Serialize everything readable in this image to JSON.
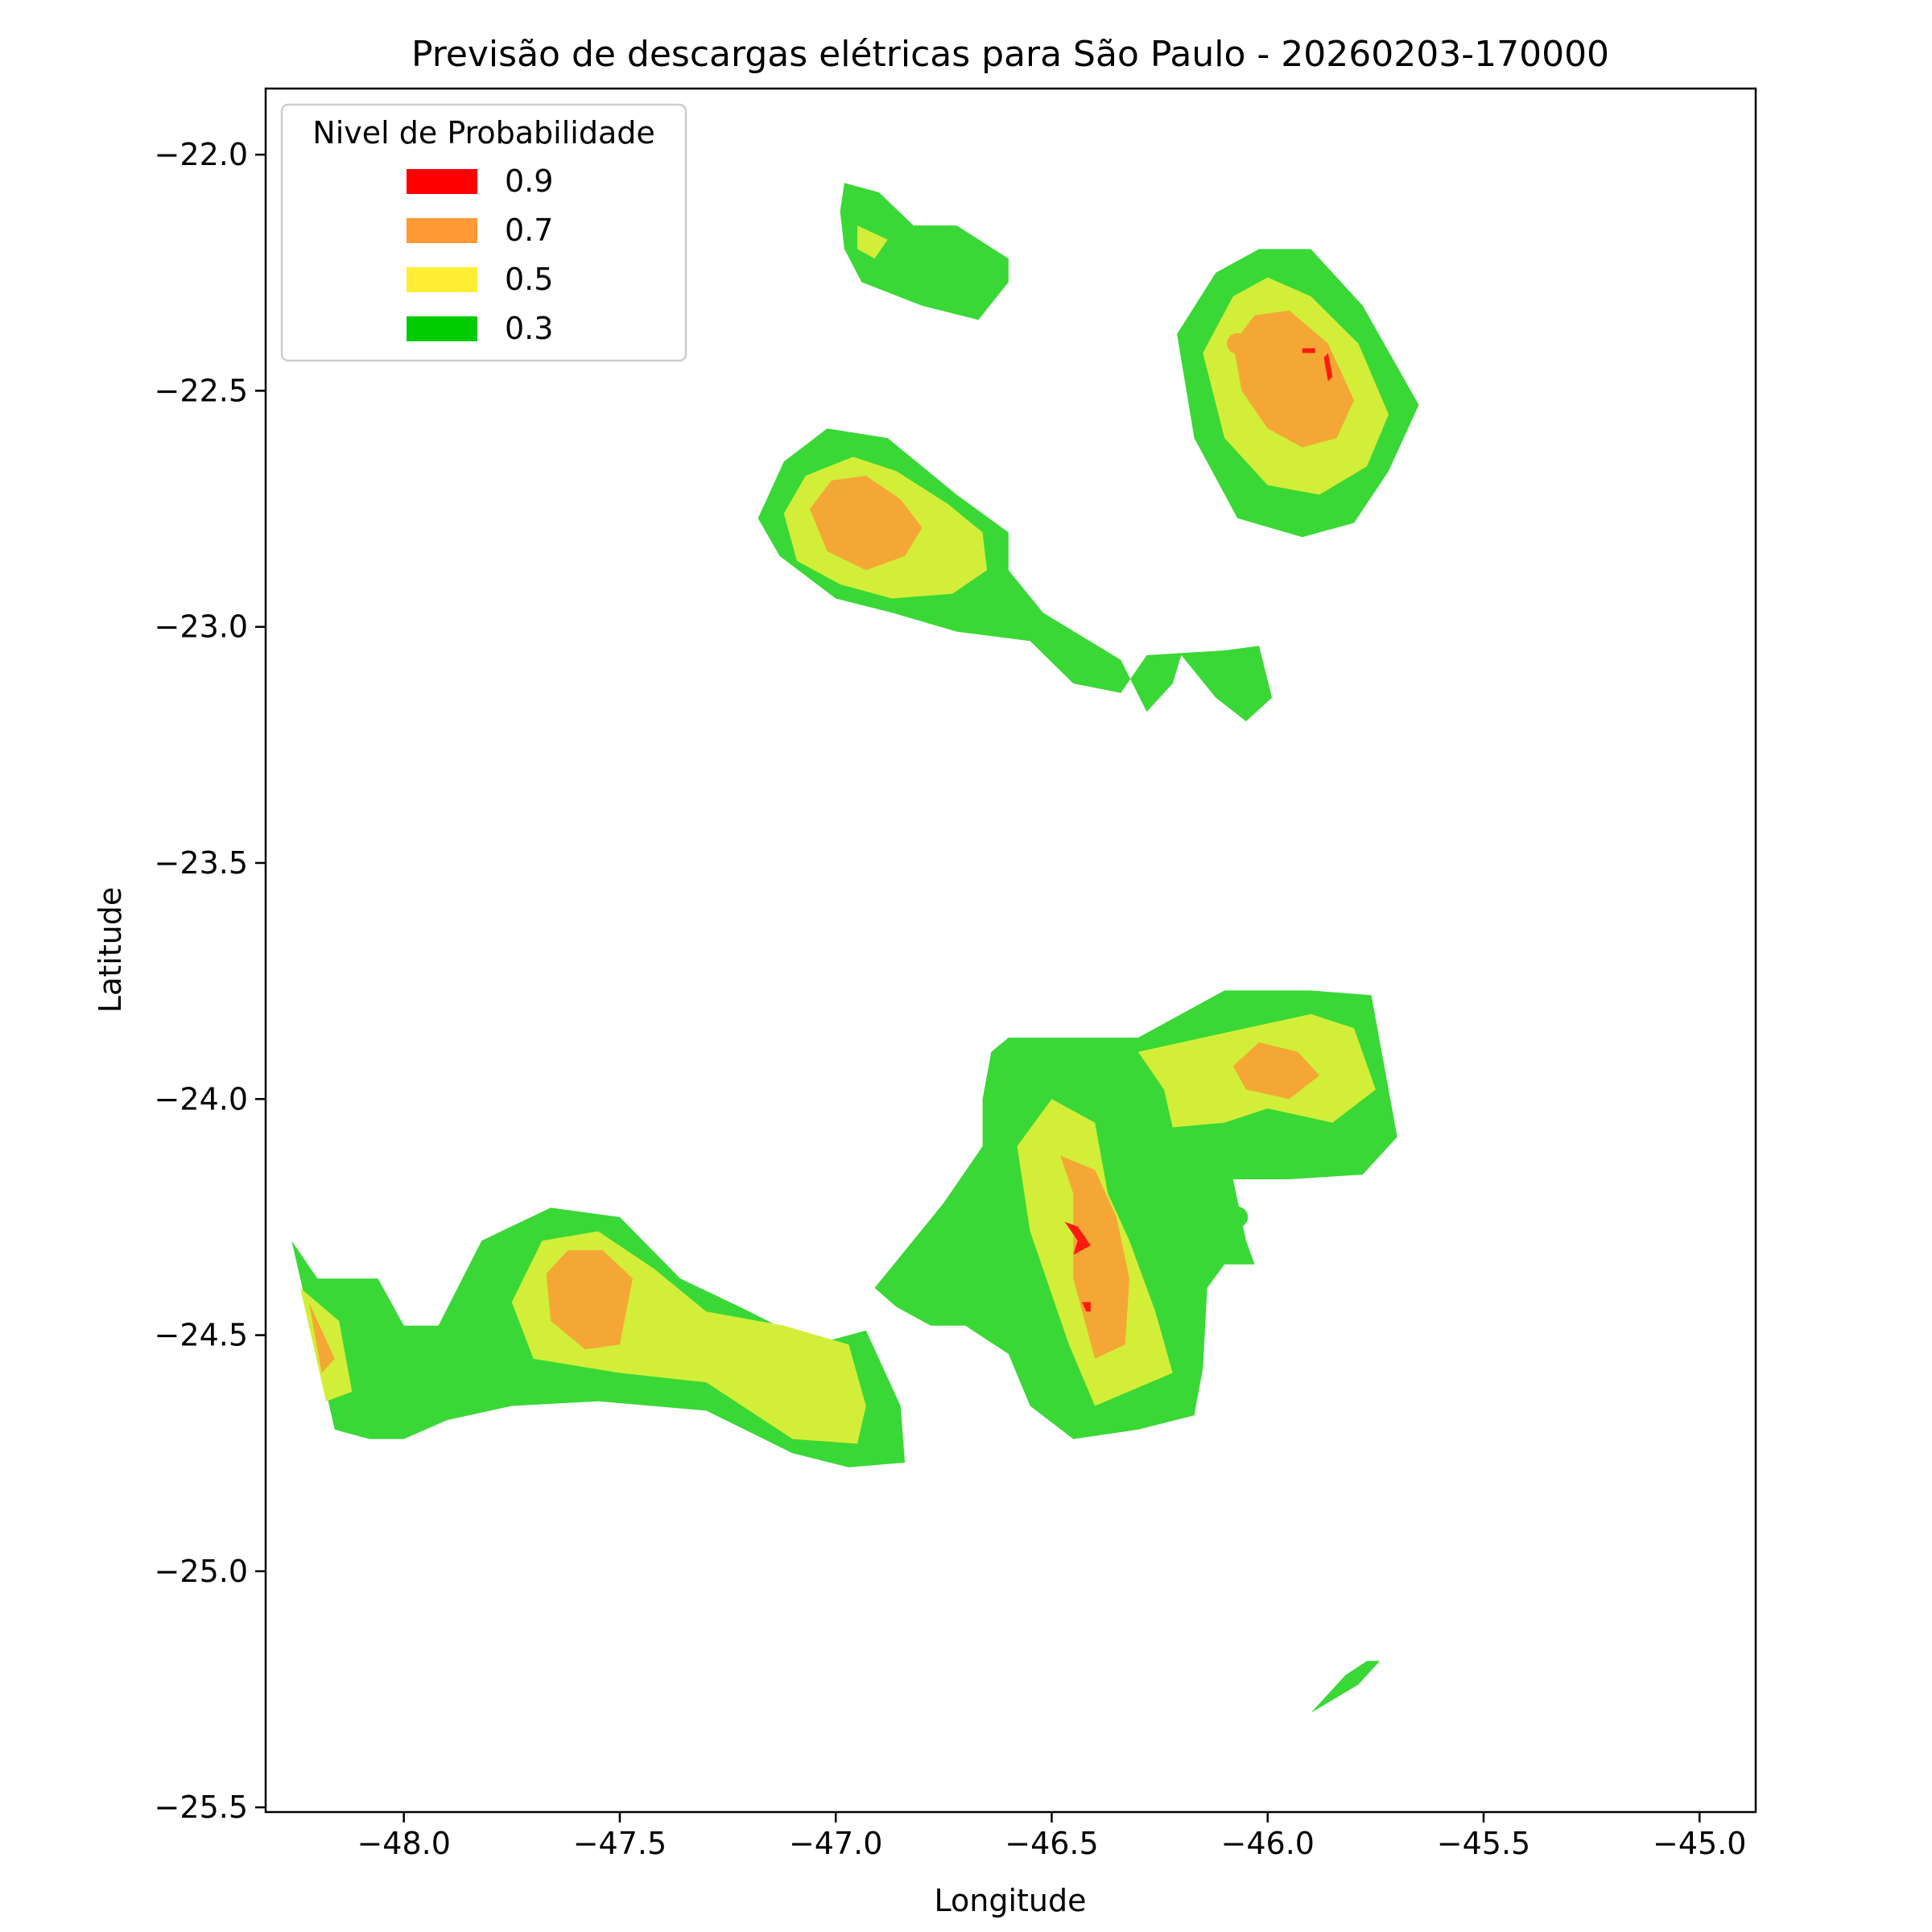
{
  "chart_data": {
    "type": "heatmap",
    "title": "Previsão de descargas elétricas para São Paulo - 20260203-170000",
    "xlabel": "Longitude",
    "ylabel": "Latitude",
    "xlim": [
      -48.32,
      -44.87
    ],
    "ylim": [
      -25.51,
      -21.86
    ],
    "xticks": [
      -48.0,
      -47.5,
      -47.0,
      -46.5,
      -46.0,
      -45.5,
      -45.0
    ],
    "yticks": [
      -22.0,
      -22.5,
      -23.0,
      -23.5,
      -24.0,
      -24.5,
      -25.0,
      -25.5
    ],
    "xtick_labels": [
      "−48.0",
      "−47.5",
      "−47.0",
      "−46.5",
      "−46.0",
      "−45.5",
      "−45.0"
    ],
    "ytick_labels": [
      "−22.0",
      "−22.5",
      "−23.0",
      "−23.5",
      "−24.0",
      "−24.5",
      "−25.0",
      "−25.5"
    ],
    "grid": false,
    "legend": {
      "title": "Nivel de Probabilidade",
      "placement": "upper-left",
      "entries": [
        {
          "label": "0.9",
          "color": "#ff0000"
        },
        {
          "label": "0.7",
          "color": "#ff9933"
        },
        {
          "label": "0.5",
          "color": "#ffee33"
        },
        {
          "label": "0.3",
          "color": "#00cc00"
        }
      ]
    },
    "fill_colors": {
      "0.3": "#3ad836",
      "0.5": "#d2ee39",
      "0.7": "#f5a735",
      "0.9": "#ff1a10"
    },
    "regions": [
      {
        "level": 0.3,
        "points": [
          [
            -46.98,
            -22.06
          ],
          [
            -46.9,
            -22.08
          ],
          [
            -46.82,
            -22.15
          ],
          [
            -46.72,
            -22.15
          ],
          [
            -46.6,
            -22.22
          ],
          [
            -46.6,
            -22.27
          ],
          [
            -46.67,
            -22.35
          ],
          [
            -46.8,
            -22.32
          ],
          [
            -46.94,
            -22.27
          ],
          [
            -46.98,
            -22.2
          ],
          [
            -46.99,
            -22.12
          ]
        ]
      },
      {
        "level": 0.5,
        "points": [
          [
            -46.95,
            -22.15
          ],
          [
            -46.88,
            -22.18
          ],
          [
            -46.91,
            -22.22
          ],
          [
            -46.95,
            -22.2
          ]
        ]
      },
      {
        "level": 0.3,
        "points": [
          [
            -47.18,
            -22.77
          ],
          [
            -47.12,
            -22.65
          ],
          [
            -47.02,
            -22.58
          ],
          [
            -46.88,
            -22.6
          ],
          [
            -46.72,
            -22.72
          ],
          [
            -46.6,
            -22.8
          ],
          [
            -46.6,
            -22.88
          ],
          [
            -46.52,
            -22.97
          ],
          [
            -46.34,
            -23.07
          ],
          [
            -46.28,
            -23.18
          ],
          [
            -46.22,
            -23.12
          ],
          [
            -46.2,
            -23.06
          ],
          [
            -46.12,
            -23.15
          ],
          [
            -46.05,
            -23.2
          ],
          [
            -45.99,
            -23.15
          ],
          [
            -46.02,
            -23.04
          ],
          [
            -46.1,
            -23.05
          ],
          [
            -46.28,
            -23.06
          ],
          [
            -46.34,
            -23.14
          ],
          [
            -46.45,
            -23.12
          ],
          [
            -46.55,
            -23.03
          ],
          [
            -46.72,
            -23.01
          ],
          [
            -46.87,
            -22.97
          ],
          [
            -47.0,
            -22.94
          ],
          [
            -47.13,
            -22.85
          ]
        ]
      },
      {
        "level": 0.5,
        "points": [
          [
            -47.12,
            -22.76
          ],
          [
            -47.07,
            -22.68
          ],
          [
            -46.96,
            -22.64
          ],
          [
            -46.86,
            -22.67
          ],
          [
            -46.74,
            -22.74
          ],
          [
            -46.66,
            -22.8
          ],
          [
            -46.65,
            -22.88
          ],
          [
            -46.73,
            -22.93
          ],
          [
            -46.87,
            -22.94
          ],
          [
            -46.99,
            -22.91
          ],
          [
            -47.09,
            -22.86
          ]
        ]
      },
      {
        "level": 0.7,
        "points": [
          [
            -47.06,
            -22.75
          ],
          [
            -47.01,
            -22.69
          ],
          [
            -46.93,
            -22.68
          ],
          [
            -46.85,
            -22.73
          ],
          [
            -46.8,
            -22.79
          ],
          [
            -46.84,
            -22.85
          ],
          [
            -46.93,
            -22.88
          ],
          [
            -47.02,
            -22.84
          ]
        ]
      },
      {
        "level": 0.3,
        "points": [
          [
            -46.21,
            -22.38
          ],
          [
            -46.12,
            -22.25
          ],
          [
            -46.02,
            -22.2
          ],
          [
            -45.9,
            -22.2
          ],
          [
            -45.78,
            -22.32
          ],
          [
            -45.65,
            -22.53
          ],
          [
            -45.72,
            -22.67
          ],
          [
            -45.8,
            -22.78
          ],
          [
            -45.92,
            -22.81
          ],
          [
            -46.07,
            -22.77
          ],
          [
            -46.17,
            -22.6
          ]
        ]
      },
      {
        "level": 0.5,
        "points": [
          [
            -46.15,
            -22.42
          ],
          [
            -46.08,
            -22.3
          ],
          [
            -46.0,
            -22.26
          ],
          [
            -45.9,
            -22.3
          ],
          [
            -45.79,
            -22.4
          ],
          [
            -45.72,
            -22.55
          ],
          [
            -45.77,
            -22.66
          ],
          [
            -45.88,
            -22.72
          ],
          [
            -46.0,
            -22.7
          ],
          [
            -46.1,
            -22.6
          ]
        ]
      },
      {
        "level": 0.7,
        "points": [
          [
            -46.08,
            -22.4
          ],
          [
            -46.03,
            -22.34
          ],
          [
            -45.95,
            -22.33
          ],
          [
            -45.86,
            -22.4
          ],
          [
            -45.8,
            -22.52
          ],
          [
            -45.84,
            -22.6
          ],
          [
            -45.92,
            -22.62
          ],
          [
            -46.0,
            -22.58
          ],
          [
            -46.06,
            -22.5
          ]
        ]
      },
      {
        "level": 0.3,
        "points": [
          [
            -48.26,
            -24.3
          ],
          [
            -48.2,
            -24.38
          ],
          [
            -48.06,
            -24.38
          ],
          [
            -48.0,
            -24.48
          ],
          [
            -47.92,
            -24.48
          ],
          [
            -47.82,
            -24.3
          ],
          [
            -47.66,
            -24.23
          ],
          [
            -47.5,
            -24.25
          ],
          [
            -47.36,
            -24.38
          ],
          [
            -47.2,
            -24.45
          ],
          [
            -47.05,
            -24.52
          ],
          [
            -46.93,
            -24.49
          ],
          [
            -46.85,
            -24.65
          ],
          [
            -46.84,
            -24.77
          ],
          [
            -46.97,
            -24.78
          ],
          [
            -47.1,
            -24.75
          ],
          [
            -47.3,
            -24.66
          ],
          [
            -47.55,
            -24.64
          ],
          [
            -47.75,
            -24.65
          ],
          [
            -47.9,
            -24.68
          ],
          [
            -48.0,
            -24.72
          ],
          [
            -48.08,
            -24.72
          ],
          [
            -48.16,
            -24.7
          ]
        ]
      },
      {
        "level": 0.5,
        "points": [
          [
            -48.24,
            -24.4
          ],
          [
            -48.15,
            -24.47
          ],
          [
            -48.12,
            -24.62
          ],
          [
            -48.18,
            -24.64
          ]
        ]
      },
      {
        "level": 0.5,
        "points": [
          [
            -47.75,
            -24.43
          ],
          [
            -47.68,
            -24.3
          ],
          [
            -47.55,
            -24.28
          ],
          [
            -47.42,
            -24.36
          ],
          [
            -47.3,
            -24.45
          ],
          [
            -47.12,
            -24.48
          ],
          [
            -46.97,
            -24.52
          ],
          [
            -46.93,
            -24.65
          ],
          [
            -46.95,
            -24.73
          ],
          [
            -47.1,
            -24.72
          ],
          [
            -47.3,
            -24.6
          ],
          [
            -47.5,
            -24.58
          ],
          [
            -47.7,
            -24.55
          ]
        ]
      },
      {
        "level": 0.7,
        "points": [
          [
            -48.22,
            -24.43
          ],
          [
            -48.16,
            -24.55
          ],
          [
            -48.19,
            -24.58
          ]
        ]
      },
      {
        "level": 0.7,
        "points": [
          [
            -47.67,
            -24.37
          ],
          [
            -47.62,
            -24.32
          ],
          [
            -47.54,
            -24.32
          ],
          [
            -47.47,
            -24.38
          ],
          [
            -47.5,
            -24.52
          ],
          [
            -47.58,
            -24.53
          ],
          [
            -47.66,
            -24.47
          ]
        ]
      },
      {
        "level": 0.3,
        "points": [
          [
            -46.64,
            -23.9
          ],
          [
            -46.6,
            -23.87
          ],
          [
            -46.5,
            -23.87
          ],
          [
            -46.3,
            -23.87
          ],
          [
            -46.1,
            -23.77
          ],
          [
            -45.9,
            -23.77
          ],
          [
            -45.76,
            -23.78
          ],
          [
            -45.7,
            -24.08
          ],
          [
            -45.78,
            -24.16
          ],
          [
            -45.95,
            -24.17
          ],
          [
            -46.08,
            -24.17
          ],
          [
            -46.05,
            -24.3
          ],
          [
            -46.03,
            -24.35
          ],
          [
            -46.1,
            -24.35
          ],
          [
            -46.14,
            -24.4
          ],
          [
            -46.15,
            -24.57
          ],
          [
            -46.17,
            -24.67
          ],
          [
            -46.3,
            -24.7
          ],
          [
            -46.45,
            -24.72
          ],
          [
            -46.55,
            -24.65
          ],
          [
            -46.6,
            -24.54
          ],
          [
            -46.7,
            -24.48
          ],
          [
            -46.78,
            -24.48
          ],
          [
            -46.86,
            -24.44
          ],
          [
            -46.91,
            -24.4
          ],
          [
            -46.75,
            -24.22
          ],
          [
            -46.66,
            -24.1
          ],
          [
            -46.66,
            -24.0
          ]
        ]
      },
      {
        "level": 0.5,
        "points": [
          [
            -46.5,
            -24.0
          ],
          [
            -46.58,
            -24.1
          ],
          [
            -46.55,
            -24.28
          ],
          [
            -46.46,
            -24.52
          ],
          [
            -46.4,
            -24.65
          ],
          [
            -46.22,
            -24.58
          ],
          [
            -46.26,
            -24.45
          ],
          [
            -46.32,
            -24.3
          ],
          [
            -46.37,
            -24.2
          ],
          [
            -46.4,
            -24.05
          ]
        ]
      },
      {
        "level": 0.5,
        "points": [
          [
            -46.3,
            -23.9
          ],
          [
            -46.24,
            -23.98
          ],
          [
            -46.22,
            -24.06
          ],
          [
            -46.1,
            -24.05
          ],
          [
            -46.0,
            -24.02
          ],
          [
            -45.85,
            -24.05
          ],
          [
            -45.75,
            -23.98
          ],
          [
            -45.8,
            -23.85
          ],
          [
            -45.9,
            -23.82
          ],
          [
            -46.05,
            -23.85
          ],
          [
            -46.2,
            -23.88
          ]
        ]
      },
      {
        "level": 0.7,
        "points": [
          [
            -46.48,
            -24.12
          ],
          [
            -46.45,
            -24.2
          ],
          [
            -46.45,
            -24.38
          ],
          [
            -46.4,
            -24.55
          ],
          [
            -46.33,
            -24.52
          ],
          [
            -46.32,
            -24.38
          ],
          [
            -46.35,
            -24.25
          ],
          [
            -46.4,
            -24.15
          ]
        ]
      },
      {
        "level": 0.7,
        "points": [
          [
            -46.08,
            -23.93
          ],
          [
            -46.02,
            -23.88
          ],
          [
            -45.93,
            -23.9
          ],
          [
            -45.88,
            -23.95
          ],
          [
            -45.95,
            -24.0
          ],
          [
            -46.05,
            -23.98
          ]
        ]
      },
      {
        "level": 0.9,
        "points": [
          [
            -46.47,
            -24.26
          ],
          [
            -46.44,
            -24.3
          ],
          [
            -46.45,
            -24.33
          ],
          [
            -46.41,
            -24.31
          ],
          [
            -46.44,
            -24.27
          ]
        ]
      },
      {
        "level": 0.9,
        "points": [
          [
            -46.43,
            -24.43
          ],
          [
            -46.42,
            -24.45
          ],
          [
            -46.41,
            -24.45
          ],
          [
            -46.41,
            -24.43
          ]
        ]
      },
      {
        "level": 0.9,
        "points": [
          [
            -45.87,
            -22.43
          ],
          [
            -45.86,
            -22.48
          ],
          [
            -45.85,
            -22.47
          ],
          [
            -45.86,
            -22.42
          ]
        ]
      },
      {
        "level": 0.9,
        "points": [
          [
            -45.92,
            -22.41
          ],
          [
            -45.89,
            -22.41
          ],
          [
            -45.89,
            -22.42
          ],
          [
            -45.92,
            -22.42
          ]
        ]
      },
      {
        "level": 0.3,
        "points": [
          [
            -45.9,
            -25.3
          ],
          [
            -45.79,
            -25.24
          ],
          [
            -45.74,
            -25.19
          ],
          [
            -45.77,
            -25.19
          ],
          [
            -45.82,
            -25.22
          ]
        ]
      }
    ],
    "markers": [
      {
        "lon": -46.07,
        "lat": -22.4,
        "level": 0.7
      },
      {
        "lon": -46.07,
        "lat": -24.25,
        "level": 0.3
      }
    ]
  }
}
